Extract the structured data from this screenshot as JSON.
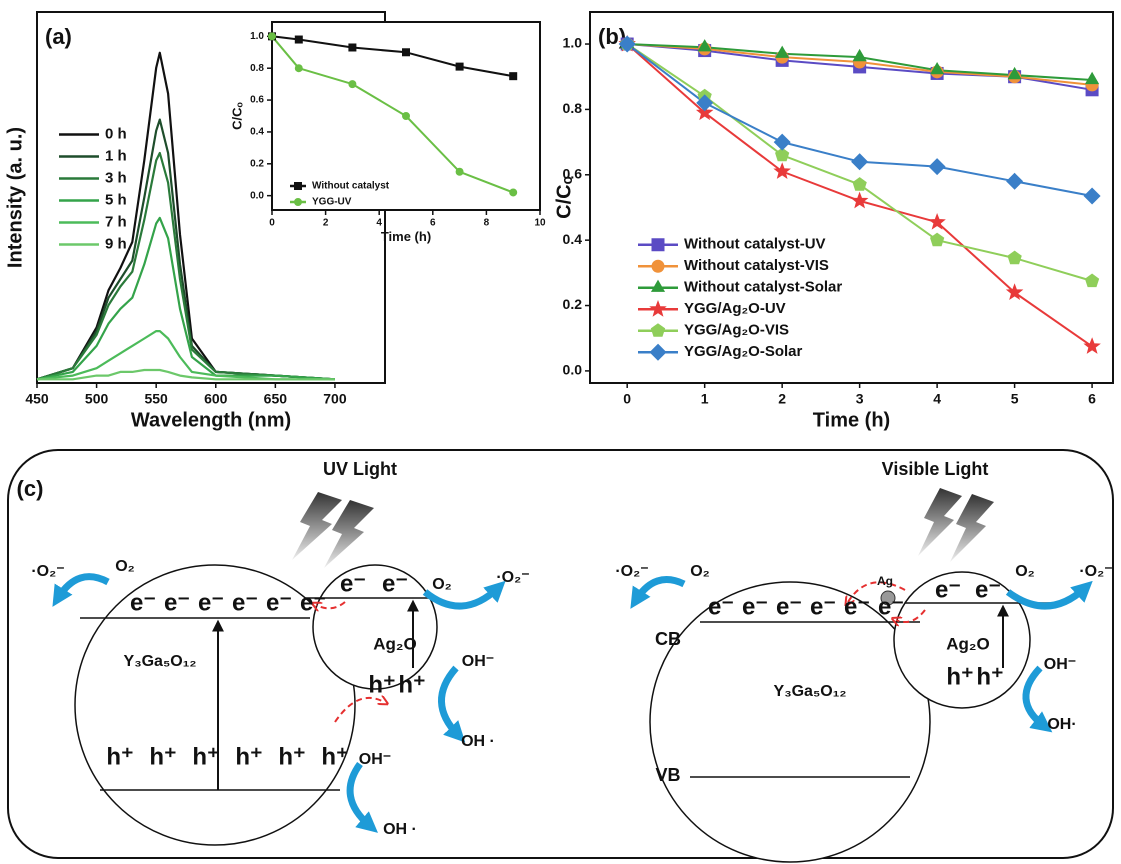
{
  "chart_data": [
    {
      "type": "line",
      "panel": "(a)",
      "x_label": "Wavelength (nm)",
      "y_label": "Intensity (a. u.)",
      "x": [
        450,
        480,
        500,
        510,
        520,
        530,
        540,
        550,
        553,
        560,
        570,
        580,
        600,
        650,
        700
      ],
      "xlim": [
        450,
        742
      ],
      "xticks": [
        450,
        500,
        550,
        600,
        650,
        700
      ],
      "ylim": [
        0,
        1
      ],
      "legend": "center left",
      "markers": false,
      "series": [
        {
          "name": "0 h",
          "color": "#111111",
          "values": [
            0.01,
            0.04,
            0.15,
            0.25,
            0.31,
            0.38,
            0.6,
            0.85,
            0.89,
            0.78,
            0.4,
            0.12,
            0.03,
            0.02,
            0.01
          ]
        },
        {
          "name": "1 h",
          "color": "#1e4d2b",
          "values": [
            0.01,
            0.04,
            0.14,
            0.23,
            0.28,
            0.33,
            0.5,
            0.68,
            0.71,
            0.62,
            0.32,
            0.1,
            0.03,
            0.02,
            0.01
          ]
        },
        {
          "name": "3 h",
          "color": "#2a7a3a",
          "values": [
            0.01,
            0.04,
            0.13,
            0.21,
            0.26,
            0.3,
            0.44,
            0.6,
            0.62,
            0.54,
            0.28,
            0.09,
            0.03,
            0.02,
            0.01
          ]
        },
        {
          "name": "5 h",
          "color": "#34a34a",
          "values": [
            0.01,
            0.03,
            0.1,
            0.16,
            0.2,
            0.23,
            0.32,
            0.43,
            0.445,
            0.39,
            0.2,
            0.07,
            0.02,
            0.02,
            0.01
          ]
        },
        {
          "name": "7 h",
          "color": "#4cbb5a",
          "values": [
            0.01,
            0.02,
            0.04,
            0.06,
            0.08,
            0.1,
            0.12,
            0.14,
            0.14,
            0.12,
            0.07,
            0.03,
            0.02,
            0.01,
            0.01
          ]
        },
        {
          "name": "9 h",
          "color": "#6cc86a",
          "values": [
            0.01,
            0.01,
            0.02,
            0.02,
            0.03,
            0.03,
            0.035,
            0.035,
            0.035,
            0.03,
            0.02,
            0.015,
            0.01,
            0.01,
            0.01
          ]
        }
      ]
    },
    {
      "type": "line",
      "x_label": "Time (h)",
      "y_label": "C/Cₒ",
      "x": [
        0,
        1,
        3,
        5,
        7,
        9
      ],
      "xlim": [
        0,
        10
      ],
      "xticks": [
        0,
        2,
        4,
        6,
        8,
        10
      ],
      "ylim": [
        -0.09,
        1.09
      ],
      "yticks": [
        {
          "value": 0,
          "label": "0.0"
        },
        {
          "value": 0.2,
          "label": "0.2"
        },
        {
          "value": 0.4,
          "label": "0.4"
        },
        {
          "value": 0.6,
          "label": "0.6"
        },
        {
          "value": 0.8,
          "label": "0.8"
        },
        {
          "value": 1,
          "label": "1.0"
        }
      ],
      "legend": "lower left",
      "markers": true,
      "series": [
        {
          "name": "Without catalyst",
          "color": "#111111",
          "marker": "square",
          "values": [
            1,
            0.98,
            0.93,
            0.9,
            0.81,
            0.75
          ]
        },
        {
          "name": "YGG-UV",
          "color": "#6abf45",
          "marker": "circle",
          "values": [
            1,
            0.8,
            0.7,
            0.5,
            0.15,
            0.02
          ]
        }
      ]
    },
    {
      "type": "line",
      "panel": "(b)",
      "x_label": "Time (h)",
      "y_label": "C/Cₒ",
      "x": [
        0,
        1,
        2,
        3,
        4,
        5,
        6
      ],
      "xlim": [
        -0.48,
        6.27
      ],
      "xticks": [
        0,
        1,
        2,
        3,
        4,
        5,
        6
      ],
      "ylim": [
        -0.037,
        1.098
      ],
      "yticks": [
        {
          "value": 0,
          "label": "0.0"
        },
        {
          "value": 0.2,
          "label": "0.2"
        },
        {
          "value": 0.4,
          "label": "0.4"
        },
        {
          "value": 0.6,
          "label": "0.6"
        },
        {
          "value": 0.8,
          "label": "0.8"
        },
        {
          "value": 1,
          "label": "1.0"
        }
      ],
      "legend": "lower left",
      "markers": true,
      "series": [
        {
          "name": "Without catalyst-UV",
          "color": "#5b4bc4",
          "marker": "square",
          "values": [
            1,
            0.98,
            0.95,
            0.93,
            0.91,
            0.9,
            0.86
          ]
        },
        {
          "name": "Without catalyst-VIS",
          "color": "#f0923a",
          "marker": "circle",
          "values": [
            1,
            0.985,
            0.96,
            0.945,
            0.915,
            0.9,
            0.875
          ]
        },
        {
          "name": "Without catalyst-Solar",
          "color": "#2e9b3a",
          "marker": "triangle",
          "values": [
            1,
            0.99,
            0.97,
            0.96,
            0.92,
            0.905,
            0.89
          ]
        },
        {
          "name": "YGG/Ag₂O-UV",
          "color": "#e83a3a",
          "marker": "star",
          "values": [
            1,
            0.79,
            0.61,
            0.52,
            0.455,
            0.24,
            0.075
          ]
        },
        {
          "name": "YGG/Ag₂O-VIS",
          "color": "#8fce5a",
          "marker": "pentagon",
          "values": [
            1,
            0.84,
            0.66,
            0.57,
            0.4,
            0.345,
            0.275
          ]
        },
        {
          "name": "YGG/Ag₂O-Solar",
          "color": "#3a7fc8",
          "marker": "diamond",
          "values": [
            1,
            0.82,
            0.7,
            0.64,
            0.625,
            0.58,
            0.535
          ]
        }
      ]
    }
  ],
  "diagram": {
    "label": "(c)",
    "left": {
      "light": "UV Light",
      "host": "Y₃Ga₅O₁₂",
      "cocatalyst": "Ag₂O",
      "electrons": [
        "e⁻",
        "e⁻",
        "e⁻",
        "e⁻",
        "e⁻",
        "e⁻"
      ],
      "holes": [
        "h⁺",
        "h⁺",
        "h⁺",
        "h⁺",
        "h⁺",
        "h⁺"
      ],
      "co_electrons": [
        "e⁻",
        "e⁻"
      ],
      "co_holes": [
        "h⁺",
        "h⁺"
      ],
      "reactants": [
        "O₂",
        "O₂",
        "OH⁻",
        "OH⁻"
      ],
      "products": [
        "·O₂⁻",
        "·O₂⁻",
        "OH ·",
        "OH ·"
      ]
    },
    "right": {
      "light": "Visible Light",
      "metal": "Ag",
      "host": "Y₃Ga₅O₁₂",
      "cocatalyst": "Ag₂O",
      "cb": "CB",
      "vb": "VB",
      "electrons": [
        "e⁻",
        "e⁻",
        "e⁻",
        "e⁻",
        "e⁻",
        "e⁻"
      ],
      "co_electrons": [
        "e⁻",
        "e⁻"
      ],
      "co_holes": [
        "h⁺",
        "h⁺"
      ],
      "reactants": [
        "O₂",
        "O₂",
        "OH⁻"
      ],
      "products": [
        "·O₂⁻",
        "·O₂⁻",
        "OH·"
      ]
    }
  }
}
